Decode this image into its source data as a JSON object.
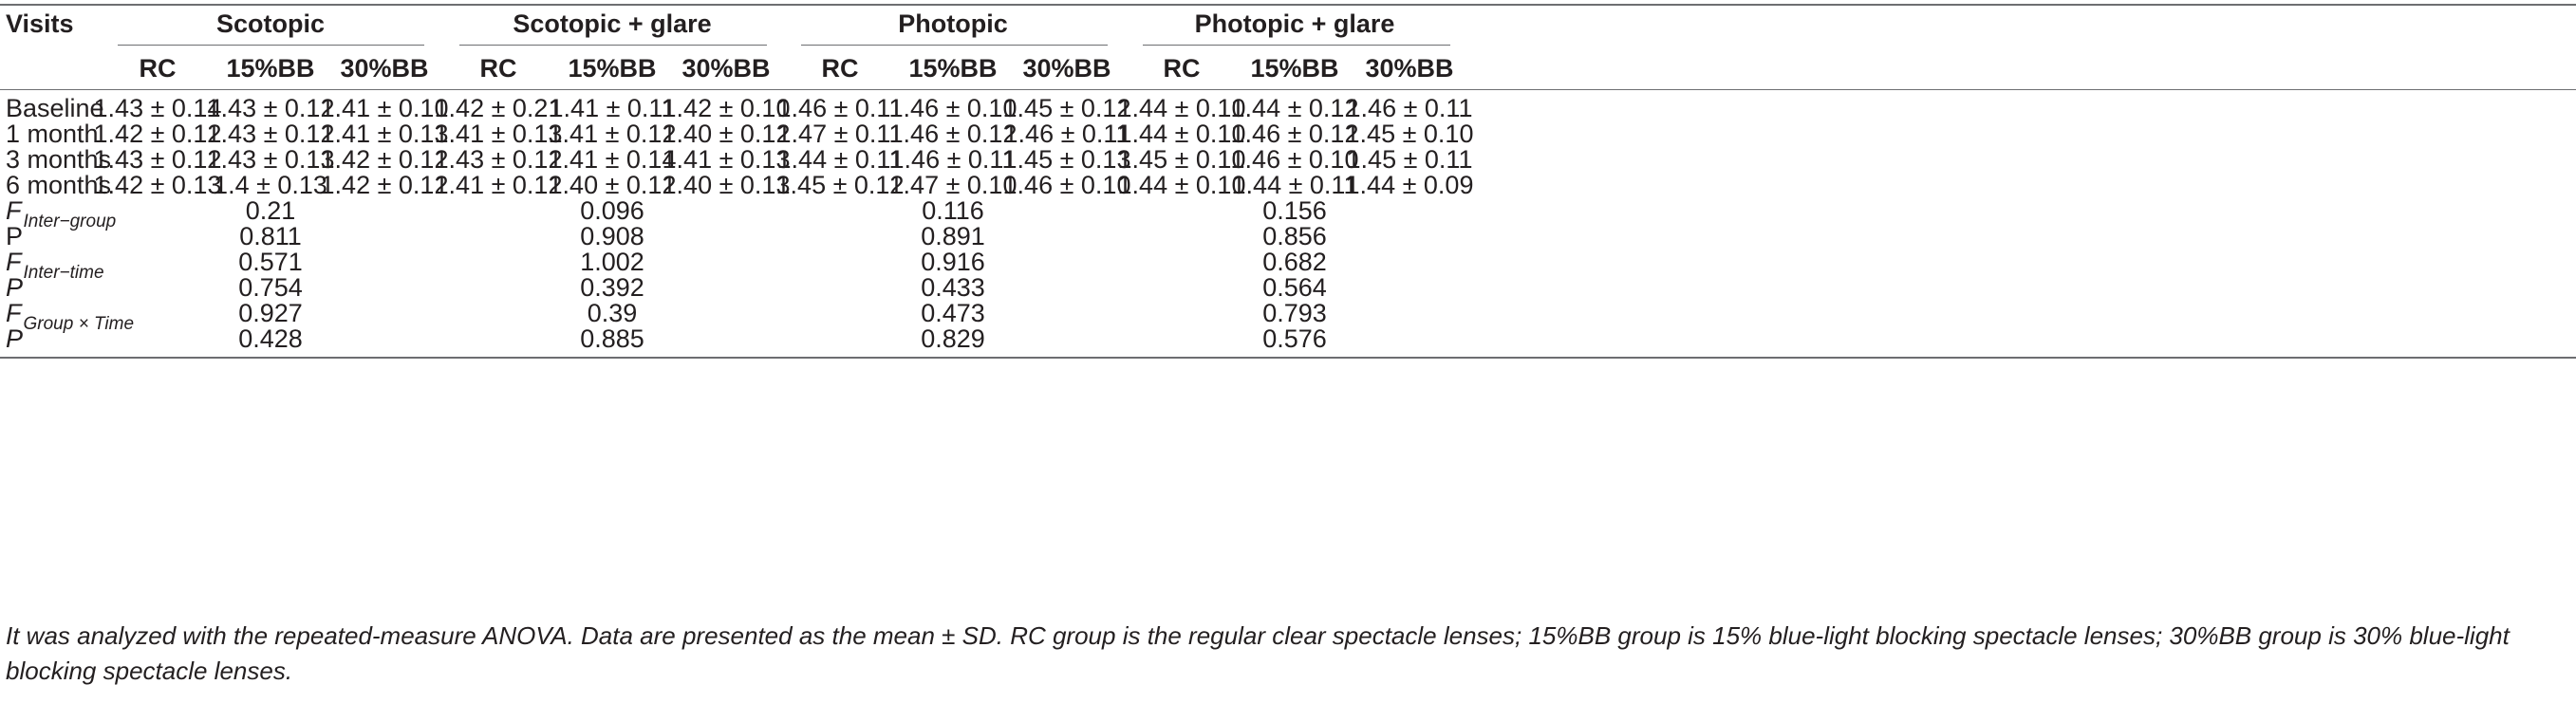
{
  "table": {
    "visits_header": "Visits",
    "conditions": [
      "Scotopic",
      "Scotopic + glare",
      "Photopic",
      "Photopic + glare"
    ],
    "groups": [
      "RC",
      "15%BB",
      "30%BB"
    ],
    "rows": [
      {
        "label": "Baseline",
        "values": [
          "1.43 ± 0.14",
          "1.43 ± 0.12",
          "1.41 ± 0.10",
          "1.42 ± 0.21",
          "1.41 ± 0.11",
          "1.42 ± 0.10",
          "1.46 ± 0.11",
          "1.46 ± 0.10",
          "1.45 ± 0.12",
          "1.44 ± 0.10",
          "1.44 ± 0.12",
          "1.46 ± 0.11"
        ]
      },
      {
        "label": "1 month",
        "values": [
          "1.42 ± 0.12",
          "1.43 ± 0.12",
          "1.41 ± 0.13",
          "1.41 ± 0.13",
          "1.41 ± 0.12",
          "1.40 ± 0.12",
          "1.47 ± 0.11",
          "1.46 ± 0.12",
          "1.46 ± 0.11",
          "1.44 ± 0.10",
          "1.46 ± 0.12",
          "1.45 ± 0.10"
        ]
      },
      {
        "label": "3 months",
        "values": [
          "1.43 ± 0.12",
          "1.43 ± 0.13",
          "1.42 ± 0.12",
          "1.43 ± 0.12",
          "1.41 ± 0.14",
          "1.41 ± 0.13",
          "1.44 ± 0.11",
          "1.46 ± 0.11",
          "1.45 ± 0.13",
          "1.45 ± 0.10",
          "1.46 ± 0.10",
          "1.45 ± 0.11"
        ]
      },
      {
        "label": "6 months",
        "values": [
          "1.42 ± 0.13",
          "1.4 ± 0.13",
          "1.42 ± 0.12",
          "1.41 ± 0.12",
          "1.40 ± 0.12",
          "1.40 ± 0.13",
          "1.45 ± 0.12",
          "1.47 ± 0.10",
          "1.46 ± 0.10",
          "1.44 ± 0.10",
          "1.44 ± 0.11",
          "1.44 ± 0.09"
        ]
      }
    ],
    "stats": [
      {
        "main": "F",
        "sub": "Inter−group",
        "italic_main": true,
        "values": [
          "0.21",
          "0.096",
          "0.116",
          "0.156"
        ]
      },
      {
        "main": "P",
        "sub": "",
        "italic_main": false,
        "values": [
          "0.811",
          "0.908",
          "0.891",
          "0.856"
        ]
      },
      {
        "main": "F",
        "sub": "Inter−time",
        "italic_main": true,
        "values": [
          "0.571",
          "1.002",
          "0.916",
          "0.682"
        ]
      },
      {
        "main": "P",
        "sub": "",
        "italic_main": true,
        "values": [
          "0.754",
          "0.392",
          "0.433",
          "0.564"
        ]
      },
      {
        "main": "F",
        "sub": "Group × Time",
        "italic_main": true,
        "values": [
          "0.927",
          "0.39",
          "0.473",
          "0.793"
        ]
      },
      {
        "main": "P",
        "sub": "",
        "italic_main": true,
        "values": [
          "0.428",
          "0.885",
          "0.829",
          "0.576"
        ]
      }
    ]
  },
  "footnote": "It was analyzed with the repeated-measure ANOVA. Data are presented as the mean ± SD. RC group is the regular clear spectacle lenses; 15%BB group is 15% blue-light blocking spectacle lenses; 30%BB group is 30% blue-light blocking spectacle lenses."
}
